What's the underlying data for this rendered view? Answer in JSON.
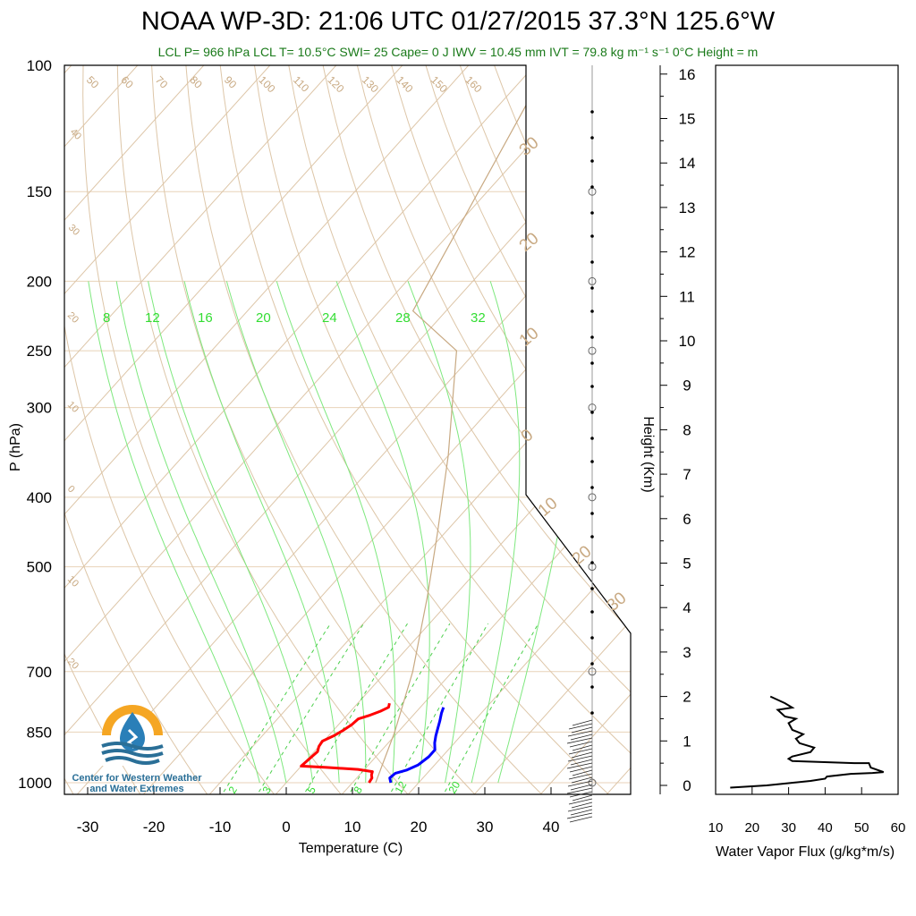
{
  "header": {
    "title": "NOAA WP-3D: 21:06 UTC 01/27/2015  37.3°N 125.6°W",
    "subtitle": "LCL P= 966 hPa  LCL T= 10.5°C  SWI= 25  Cape= 0 J  IWV = 10.45 mm  IVT = 79.8 kg m⁻¹ s⁻¹  0°C Height =  m"
  },
  "logo": {
    "line1": "Center for Western Weather",
    "line2": "and Water Extremes",
    "colors": {
      "orange": "#f5a623",
      "blue": "#2a7fb8",
      "teal": "#2a6f97"
    }
  },
  "chart_data": [
    {
      "type": "line",
      "name": "skew-t",
      "xlabel": "Temperature (C)",
      "ylabel": "P (hPa)",
      "x_ticks": [
        -30,
        -20,
        -10,
        0,
        10,
        20,
        30,
        40
      ],
      "y_ticks": [
        100,
        150,
        200,
        250,
        300,
        400,
        500,
        700,
        850,
        1000
      ],
      "xlim": [
        -35,
        45
      ],
      "ylim": [
        1050,
        100
      ],
      "y_scale": "log",
      "right_axis": {
        "label": "Height (Km)",
        "ticks": [
          0,
          1,
          2,
          3,
          4,
          5,
          6,
          7,
          8,
          9,
          10,
          11,
          12,
          13,
          14,
          15,
          16
        ]
      },
      "dry_adiabat_labels": [
        "50",
        "60",
        "70",
        "80",
        "90",
        "100",
        "110",
        "120",
        "130",
        "140",
        "150",
        "160"
      ],
      "left_theta_labels": [
        "40",
        "30",
        "20",
        "10",
        "0",
        "10",
        "20"
      ],
      "isotherm_labels": [
        "30",
        "20",
        "10",
        "0",
        "10",
        "20",
        "30"
      ],
      "moist_adiabat_labels": [
        "8",
        "12",
        "16",
        "20",
        "24",
        "28",
        "32"
      ],
      "mixing_ratio_labels": [
        "2",
        "3",
        "5",
        "8",
        "12",
        "20"
      ],
      "series": [
        {
          "name": "temperature",
          "color": "#ff0000",
          "points": [
            [
              12.5,
              1000
            ],
            [
              12.3,
              985
            ],
            [
              11.8,
              975
            ],
            [
              11.5,
              965
            ],
            [
              9,
              958
            ],
            [
              4,
              952
            ],
            [
              0,
              948
            ],
            [
              0.2,
              930
            ],
            [
              0.5,
              905
            ],
            [
              0,
              890
            ],
            [
              -0.2,
              875
            ],
            [
              0.8,
              860
            ],
            [
              1.5,
              845
            ],
            [
              2,
              830
            ],
            [
              2.2,
              815
            ],
            [
              3.5,
              805
            ],
            [
              4.5,
              795
            ],
            [
              5.2,
              785
            ],
            [
              4.8,
              775
            ]
          ]
        },
        {
          "name": "dewpoint",
          "color": "#0000ff",
          "points": [
            [
              15.8,
              1000
            ],
            [
              15,
              985
            ],
            [
              15.2,
              970
            ],
            [
              16.5,
              960
            ],
            [
              17.5,
              945
            ],
            [
              18,
              920
            ],
            [
              18,
              900
            ],
            [
              17,
              880
            ],
            [
              16.2,
              860
            ],
            [
              15.5,
              840
            ],
            [
              14.8,
              820
            ],
            [
              14,
              800
            ],
            [
              13.5,
              785
            ]
          ]
        },
        {
          "name": "parcel",
          "color": "#c8a982",
          "points": [
            [
              13.5,
              1000
            ],
            [
              9.5,
              850
            ],
            [
              4,
              700
            ],
            [
              -4,
              550
            ],
            [
              -11,
              450
            ],
            [
              -20,
              350
            ],
            [
              -33,
              250
            ],
            [
              -45,
              220
            ],
            [
              -58,
              100
            ]
          ]
        }
      ]
    },
    {
      "type": "line",
      "name": "water-vapor-flux",
      "xlabel": "Water Vapor Flux (g/kg*m/s)",
      "ylabel": "",
      "x_ticks": [
        10,
        20,
        30,
        40,
        50,
        60
      ],
      "xlim": [
        10,
        60
      ],
      "ylim": [
        0,
        16.5
      ],
      "series": [
        {
          "name": "flux",
          "color": "#000000",
          "points": [
            [
              14,
              -0.05
            ],
            [
              24,
              0.0
            ],
            [
              30,
              0.05
            ],
            [
              36,
              0.1
            ],
            [
              40,
              0.15
            ],
            [
              40.5,
              0.2
            ],
            [
              47,
              0.26
            ],
            [
              53,
              0.28
            ],
            [
              56,
              0.3
            ],
            [
              52.5,
              0.4
            ],
            [
              52,
              0.5
            ],
            [
              48,
              0.5
            ],
            [
              31,
              0.55
            ],
            [
              30,
              0.6
            ],
            [
              31,
              0.65
            ],
            [
              36,
              0.75
            ],
            [
              37,
              0.85
            ],
            [
              33,
              0.95
            ],
            [
              32,
              1.05
            ],
            [
              34,
              1.15
            ],
            [
              31,
              1.25
            ],
            [
              30,
              1.4
            ],
            [
              32,
              1.5
            ],
            [
              29,
              1.55
            ],
            [
              27,
              1.7
            ],
            [
              31,
              1.75
            ],
            [
              29,
              1.85
            ],
            [
              25,
              2.0
            ]
          ]
        }
      ]
    }
  ]
}
